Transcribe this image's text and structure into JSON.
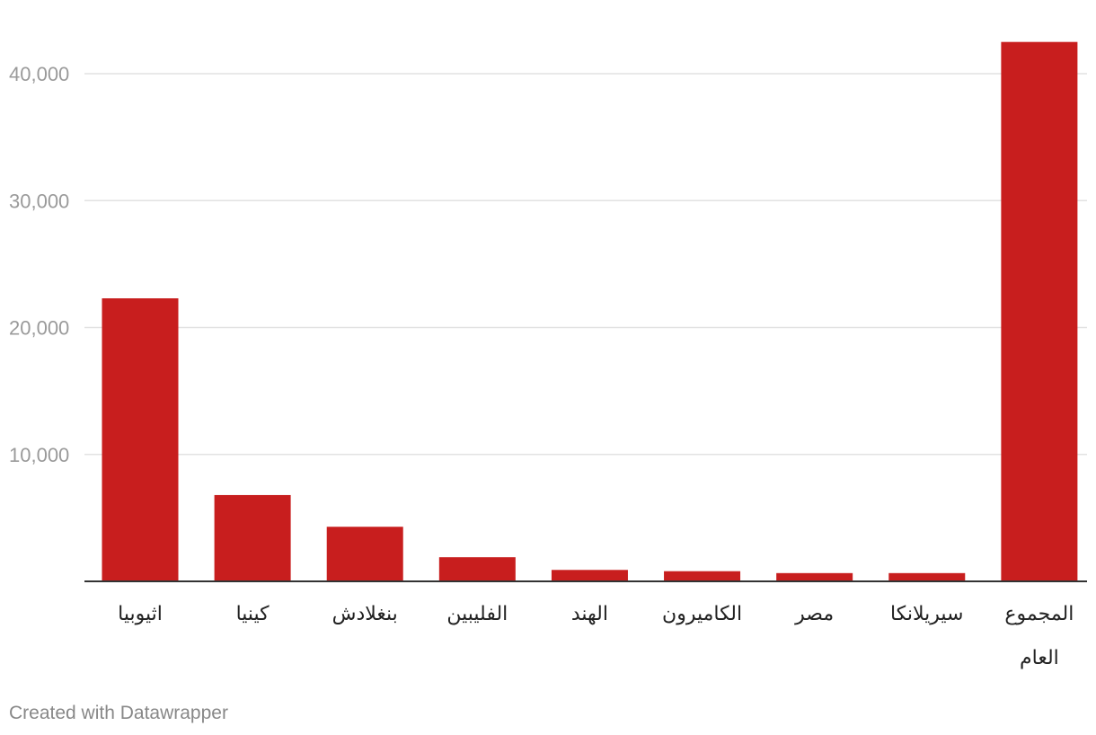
{
  "chart_data": {
    "type": "bar",
    "title": "",
    "xlabel": "",
    "ylabel": "",
    "categories": [
      "اثيوبيا",
      "كينيا",
      "بنغلادش",
      "الفليبين",
      "الهند",
      "الكاميرون",
      "مصر",
      "سيريلانكا",
      "المجموع العام"
    ],
    "values": [
      22300,
      6800,
      4300,
      1900,
      900,
      800,
      650,
      650,
      42500
    ],
    "ylim": [
      0,
      45000
    ],
    "yticks": [
      10000,
      20000,
      30000,
      40000
    ],
    "ytick_labels": [
      "10,000",
      "20,000",
      "30,000",
      "40,000"
    ],
    "grid": true,
    "legend": "none",
    "bar_color": "#c81e1e",
    "gridline_color": "#e2e2e2",
    "baseline_color": "#333333",
    "tick_label_color": "#9a9a9a",
    "category_label_color": "#222222"
  },
  "footer": {
    "credit": "Created with Datawrapper"
  }
}
